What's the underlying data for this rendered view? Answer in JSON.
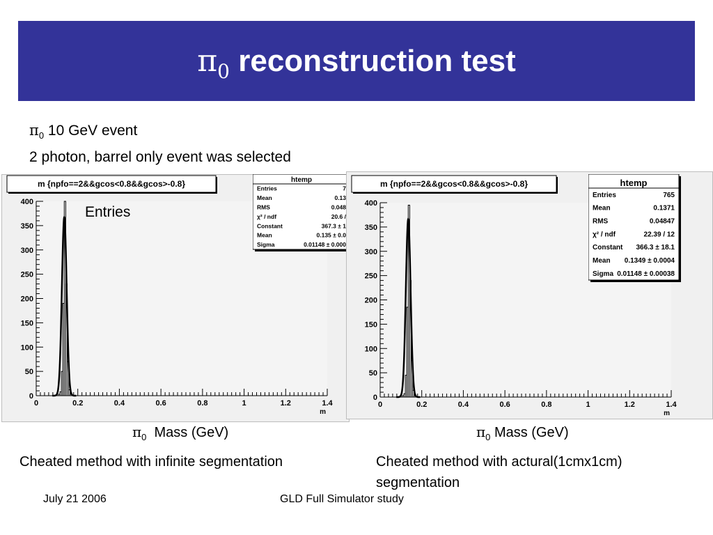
{
  "slide": {
    "title_symbol": "π",
    "title_sub": "0",
    "title_text": "reconstruction test",
    "intro_symbol": "π",
    "intro_sub": "0",
    "intro_line1": "10 GeV event",
    "intro_line2": "2 photon, barrel only event was selected",
    "entries_label": "Entries",
    "footer_date": "July 21 2006",
    "footer_center": "GLD Full Simulator study"
  },
  "captions": {
    "left": {
      "symbol": "π",
      "sub": "0",
      "text": "Mass (GeV)"
    },
    "right": {
      "symbol": "π",
      "sub": "0",
      "text": "Mass (GeV)"
    },
    "left_desc": "Cheated method with infinite segmentation",
    "right_desc_line1": "Cheated method with actural(1cmx1cm)",
    "right_desc_line2": "segmentation"
  },
  "chart_data": [
    {
      "type": "bar",
      "title": "m {npfo==2&&gcos<0.8&&gcos>-0.8}",
      "xlabel": "m",
      "ylabel": "",
      "xlim": [
        0,
        1.4
      ],
      "ylim": [
        0,
        400
      ],
      "xticks": [
        "0",
        "0.2",
        "0.4",
        "0.6",
        "0.8",
        "1",
        "1.2",
        "1.4"
      ],
      "yticks": [
        "0",
        "50",
        "100",
        "150",
        "200",
        "250",
        "300",
        "350",
        "400"
      ],
      "bin_width": 0.007,
      "bins": [
        [
          0.107,
          3
        ],
        [
          0.114,
          8
        ],
        [
          0.121,
          50
        ],
        [
          0.128,
          190
        ],
        [
          0.135,
          400
        ],
        [
          0.142,
          230
        ],
        [
          0.149,
          70
        ],
        [
          0.156,
          12
        ],
        [
          0.163,
          3
        ]
      ],
      "fit_curve": {
        "constant": 367.3,
        "mean": 0.135,
        "sigma": 0.01148
      },
      "stats_box": {
        "title": "htemp",
        "rows": [
          [
            "Entries",
            "7"
          ],
          [
            "Mean",
            "0.13"
          ],
          [
            "RMS",
            "0.048"
          ],
          [
            "χ² / ndf",
            "20.6 /"
          ],
          [
            "Constant",
            "367.3 ± 1"
          ],
          [
            "Mean",
            "0.135 ± 0.0"
          ],
          [
            "Sigma",
            "0.01148 ± 0.000"
          ]
        ]
      }
    },
    {
      "type": "bar",
      "title": "m {npfo==2&&gcos<0.8&&gcos>-0.8}",
      "xlabel": "m",
      "ylabel": "",
      "xlim": [
        0,
        1.4
      ],
      "ylim": [
        0,
        400
      ],
      "xticks": [
        "0",
        "0.2",
        "0.4",
        "0.6",
        "0.8",
        "1",
        "1.2",
        "1.4"
      ],
      "yticks": [
        "0",
        "50",
        "100",
        "150",
        "200",
        "250",
        "300",
        "350",
        "400"
      ],
      "bin_width": 0.007,
      "bins": [
        [
          0.107,
          3
        ],
        [
          0.114,
          7
        ],
        [
          0.121,
          45
        ],
        [
          0.128,
          185
        ],
        [
          0.135,
          395
        ],
        [
          0.142,
          240
        ],
        [
          0.149,
          75
        ],
        [
          0.156,
          14
        ],
        [
          0.163,
          3
        ]
      ],
      "fit_curve": {
        "constant": 366.3,
        "mean": 0.1349,
        "sigma": 0.01148
      },
      "stats_box": {
        "title": "htemp",
        "rows": [
          [
            "Entries",
            "765"
          ],
          [
            "Mean",
            "0.1371"
          ],
          [
            "RMS",
            "0.04847"
          ],
          [
            "χ² / ndf",
            "22.39 / 12"
          ],
          [
            "Constant",
            "366.3 ± 18.1"
          ],
          [
            "Mean",
            "0.1349 ± 0.0004"
          ],
          [
            "Sigma",
            "0.01148 ± 0.00038"
          ]
        ]
      }
    }
  ]
}
